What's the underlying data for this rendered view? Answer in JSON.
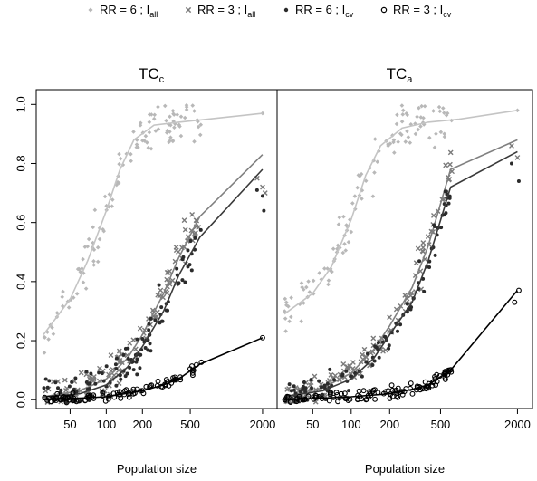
{
  "chart_data": {
    "type": "scatter",
    "x_scale": "log",
    "xlim": [
      30,
      2300
    ],
    "ylim": [
      -0.03,
      1.05
    ],
    "xticks": [
      50,
      100,
      200,
      500,
      2000
    ],
    "yticks": [
      0.0,
      0.2,
      0.4,
      0.6,
      0.8,
      1.0
    ],
    "xlabel": "Population size",
    "ylabel": "",
    "legend": {
      "placement": "top",
      "entries": [
        {
          "key": "rr6_all",
          "text": "RR = 6 ; I",
          "sub": "all",
          "marker": "diamond",
          "color": "#b8b8b8"
        },
        {
          "key": "rr3_all",
          "text": "RR = 3 ; I",
          "sub": "all",
          "marker": "cross",
          "color": "#7a7a7a"
        },
        {
          "key": "rr6_cv",
          "text": "RR = 6 ; I",
          "sub": "cv",
          "marker": "dot",
          "color": "#2b2b2b"
        },
        {
          "key": "rr3_cv",
          "text": "RR = 3 ; I",
          "sub": "cv",
          "marker": "circle",
          "color": "#000000"
        }
      ]
    },
    "panels": [
      {
        "title": "TC",
        "title_sub": "c",
        "series": [
          {
            "key": "rr6_all",
            "curve": [
              [
                30,
                0.22
              ],
              [
                50,
                0.34
              ],
              [
                70,
                0.47
              ],
              [
                100,
                0.64
              ],
              [
                130,
                0.78
              ],
              [
                170,
                0.88
              ],
              [
                250,
                0.93
              ],
              [
                400,
                0.94
              ],
              [
                700,
                0.95
              ],
              [
                2000,
                0.97
              ]
            ],
            "cloud": {
              "xmin": 30,
              "xmax": 620,
              "sd": 0.04,
              "n": 120
            },
            "extra": [
              [
                2000,
                0.97
              ]
            ]
          },
          {
            "key": "rr3_all",
            "curve": [
              [
                30,
                0.01
              ],
              [
                60,
                0.03
              ],
              [
                100,
                0.07
              ],
              [
                150,
                0.14
              ],
              [
                200,
                0.22
              ],
              [
                300,
                0.36
              ],
              [
                400,
                0.48
              ],
              [
                600,
                0.62
              ],
              [
                2000,
                0.83
              ]
            ],
            "cloud": {
              "xmin": 30,
              "xmax": 620,
              "sd": 0.03,
              "n": 120
            },
            "extra": [
              [
                1800,
                0.75
              ],
              [
                2000,
                0.72
              ],
              [
                2100,
                0.7
              ]
            ]
          },
          {
            "key": "rr6_cv",
            "curve": [
              [
                30,
                0.01
              ],
              [
                60,
                0.02
              ],
              [
                100,
                0.05
              ],
              [
                150,
                0.11
              ],
              [
                200,
                0.18
              ],
              [
                300,
                0.3
              ],
              [
                400,
                0.42
              ],
              [
                600,
                0.55
              ],
              [
                2000,
                0.78
              ]
            ],
            "cloud": {
              "xmin": 30,
              "xmax": 620,
              "sd": 0.03,
              "n": 110
            },
            "extra": [
              [
                1800,
                0.71
              ],
              [
                2000,
                0.69
              ],
              [
                2050,
                0.64
              ]
            ]
          },
          {
            "key": "rr3_cv",
            "curve": [
              [
                30,
                0.0
              ],
              [
                60,
                0.005
              ],
              [
                100,
                0.01
              ],
              [
                200,
                0.03
              ],
              [
                300,
                0.05
              ],
              [
                400,
                0.07
              ],
              [
                600,
                0.12
              ],
              [
                2000,
                0.21
              ]
            ],
            "cloud": {
              "xmin": 30,
              "xmax": 620,
              "sd": 0.008,
              "n": 100
            },
            "extra": [
              [
                2000,
                0.21
              ]
            ]
          }
        ]
      },
      {
        "title": "TC",
        "title_sub": "a",
        "series": [
          {
            "key": "rr6_all",
            "curve": [
              [
                30,
                0.29
              ],
              [
                50,
                0.36
              ],
              [
                70,
                0.45
              ],
              [
                100,
                0.61
              ],
              [
                130,
                0.76
              ],
              [
                170,
                0.86
              ],
              [
                250,
                0.92
              ],
              [
                400,
                0.94
              ],
              [
                700,
                0.95
              ],
              [
                2000,
                0.98
              ]
            ],
            "cloud": {
              "xmin": 30,
              "xmax": 620,
              "sd": 0.04,
              "n": 120
            },
            "extra": [
              [
                2000,
                0.98
              ]
            ]
          },
          {
            "key": "rr3_all",
            "curve": [
              [
                30,
                0.01
              ],
              [
                60,
                0.04
              ],
              [
                100,
                0.09
              ],
              [
                150,
                0.17
              ],
              [
                200,
                0.25
              ],
              [
                300,
                0.38
              ],
              [
                400,
                0.52
              ],
              [
                600,
                0.78
              ],
              [
                2000,
                0.88
              ]
            ],
            "cloud": {
              "xmin": 30,
              "xmax": 620,
              "sd": 0.03,
              "n": 120
            },
            "extra": [
              [
                1800,
                0.86
              ],
              [
                2000,
                0.82
              ]
            ]
          },
          {
            "key": "rr6_cv",
            "curve": [
              [
                30,
                0.01
              ],
              [
                60,
                0.03
              ],
              [
                100,
                0.07
              ],
              [
                150,
                0.14
              ],
              [
                200,
                0.22
              ],
              [
                300,
                0.33
              ],
              [
                400,
                0.47
              ],
              [
                600,
                0.72
              ],
              [
                2000,
                0.84
              ]
            ],
            "cloud": {
              "xmin": 30,
              "xmax": 620,
              "sd": 0.03,
              "n": 110
            },
            "extra": [
              [
                1800,
                0.8
              ],
              [
                2050,
                0.74
              ]
            ]
          },
          {
            "key": "rr3_cv",
            "curve": [
              [
                30,
                0.0
              ],
              [
                60,
                0.005
              ],
              [
                100,
                0.01
              ],
              [
                200,
                0.02
              ],
              [
                300,
                0.035
              ],
              [
                400,
                0.05
              ],
              [
                600,
                0.1
              ],
              [
                2000,
                0.37
              ]
            ],
            "cloud": {
              "xmin": 30,
              "xmax": 620,
              "sd": 0.01,
              "n": 110
            },
            "extra": [
              [
                1900,
                0.33
              ],
              [
                2050,
                0.37
              ]
            ]
          }
        ]
      }
    ]
  }
}
